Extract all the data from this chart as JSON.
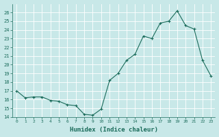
{
  "x": [
    0,
    1,
    2,
    3,
    4,
    5,
    6,
    7,
    8,
    9,
    10,
    11,
    12,
    13,
    14,
    15,
    16,
    17,
    18,
    19,
    20,
    21,
    22,
    23
  ],
  "y": [
    17.0,
    16.2,
    16.3,
    16.3,
    15.9,
    15.8,
    15.4,
    15.3,
    14.3,
    14.2,
    14.9,
    18.2,
    19.0,
    20.5,
    21.2,
    23.3,
    23.0,
    24.8,
    25.0,
    26.2,
    24.5,
    24.1,
    20.5,
    18.7
  ],
  "xlabel": "Humidex (Indice chaleur)",
  "xlim": [
    -0.5,
    23.5
  ],
  "ylim": [
    14,
    27
  ],
  "yticks": [
    14,
    15,
    16,
    17,
    18,
    19,
    20,
    21,
    22,
    23,
    24,
    25,
    26
  ],
  "xticks": [
    0,
    1,
    2,
    3,
    4,
    5,
    6,
    7,
    8,
    9,
    10,
    11,
    12,
    13,
    14,
    15,
    16,
    17,
    18,
    19,
    20,
    21,
    22,
    23
  ],
  "line_color": "#1a6b5a",
  "marker": "+",
  "bg_color": "#c8e8e8",
  "grid_color": "#b0d8d8",
  "label_color": "#1a6b5a"
}
